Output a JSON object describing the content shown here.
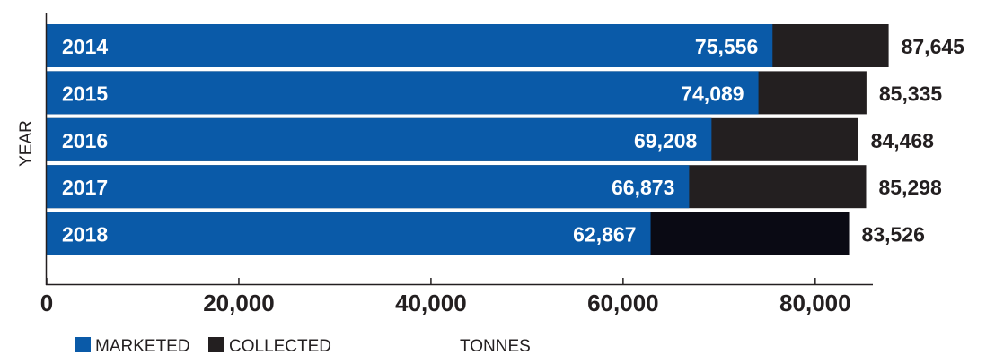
{
  "chart_data": {
    "type": "bar",
    "orientation": "horizontal",
    "stacked": false,
    "overlapped": true,
    "categories": [
      "2014",
      "2015",
      "2016",
      "2017",
      "2018"
    ],
    "series": [
      {
        "name": "MARKETED",
        "values": [
          75556,
          74089,
          69208,
          66873,
          62867
        ],
        "color": "#0a5aa8"
      },
      {
        "name": "COLLECTED",
        "values": [
          87645,
          85335,
          84468,
          85298,
          83526
        ],
        "color": "#231f20"
      }
    ],
    "value_labels": {
      "marketed": [
        "75,556",
        "74,089",
        "69,208",
        "66,873",
        "62,867"
      ],
      "collected": [
        "87,645",
        "85,335",
        "84,468",
        "85,298",
        "83,526"
      ]
    },
    "xlim": [
      0,
      86000
    ],
    "xticks": [
      0,
      20000,
      40000,
      60000,
      80000
    ],
    "xtick_labels": [
      "0",
      "20,000",
      "40,000",
      "60,000",
      "80,000"
    ],
    "xlabel": "TONNES",
    "ylabel": "YEAR",
    "legend_position": "bottom-left",
    "grid": false,
    "colors": {
      "axis": "#231f20",
      "label_on_bar": "#ffffff",
      "label_outside": "#231f20",
      "last_collected": "#0a0a14"
    }
  }
}
